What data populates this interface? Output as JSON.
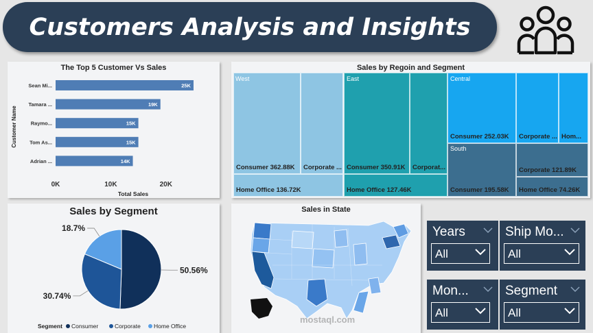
{
  "header": {
    "title": "Customers Analysis and Insights"
  },
  "icons": {
    "users": "users-icon",
    "dropdown": "chevron-down-icon"
  },
  "top_customers": {
    "title": "The Top 5 Customer Vs Sales",
    "ylabel": "Customer Name",
    "xlabel": "Total Sales",
    "bar_color": "#4f7db5",
    "chart_data": {
      "type": "bar",
      "orientation": "horizontal",
      "categories": [
        "Sean Mi...",
        "Tamara ...",
        "Raymo...",
        "Tom As...",
        "Adrian ..."
      ],
      "values": [
        25000,
        19000,
        15000,
        15000,
        14000
      ],
      "value_labels": [
        "25K",
        "19K",
        "15K",
        "15K",
        "14K"
      ],
      "x_ticks": [
        "0K",
        "10K",
        "20K"
      ],
      "xlim": [
        0,
        25500
      ]
    }
  },
  "treemap": {
    "title": "Sales by Regoin and Segment",
    "groups": {
      "west": "West",
      "east": "East",
      "central": "Central",
      "south": "South"
    },
    "labels": {
      "west_consumer": "Consumer 362.88K",
      "west_corporate": "Corporate ...",
      "west_home": "Home Office 136.72K",
      "east_consumer": "Consumer 350.91K",
      "east_corporate": "Corporat...",
      "east_home": "Home Office 127.46K",
      "central_consumer": "Consumer 252.03K",
      "central_corporate": "Corporate ...",
      "central_home": "Hom...",
      "south_consumer": "Consumer 195.58K",
      "south_corporate": "Corporate 121.89K",
      "south_home": "Home Office 74.26K"
    },
    "colors": {
      "west": "#8ec5e3",
      "east": "#1fa0ae",
      "central": "#17a6f0",
      "south": "#3c6e8f"
    }
  },
  "segment_pie": {
    "title": "Sales by Segment",
    "legend_title": "Segment",
    "chart_data": {
      "type": "pie",
      "labels": [
        "Consumer",
        "Corporate",
        "Home Office"
      ],
      "values": [
        50.56,
        30.74,
        18.7
      ],
      "value_labels": [
        "50.56%",
        "30.74%",
        "18.7%"
      ],
      "colors": [
        "#10305a",
        "#1e5598",
        "#5aa0e6"
      ]
    }
  },
  "state_map": {
    "title": "Sales in State"
  },
  "watermark": {
    "text": "mostaql.com"
  },
  "slicers": [
    {
      "title": "Years",
      "value": "All"
    },
    {
      "title": "Ship Mo...",
      "value": "All"
    },
    {
      "title": "Mon...",
      "value": "All"
    },
    {
      "title": "Segment",
      "value": "All"
    }
  ]
}
